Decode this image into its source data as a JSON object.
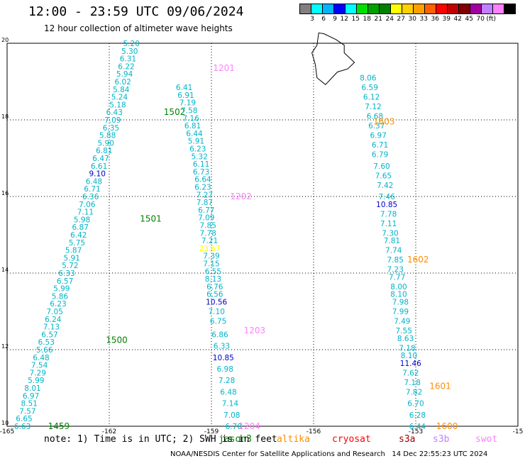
{
  "title": "12:00 - 23:59 UTC 09/06/2024",
  "subtitle": "12 hour collection of altimeter wave heights",
  "colorbar": {
    "colors": [
      "#808080",
      "#00ffff",
      "#00b4ff",
      "#0000ff",
      "#00ffff",
      "#00e000",
      "#00a000",
      "#008000",
      "#ffff00",
      "#ffd000",
      "#ffa000",
      "#ff6000",
      "#ff0000",
      "#c00000",
      "#800000",
      "#a000a0",
      "#c080ff",
      "#ff80ff",
      "#000000"
    ],
    "labels": [
      "3",
      "6",
      "9",
      "12",
      "15",
      "18",
      "21",
      "24",
      "27",
      "30",
      "33",
      "36",
      "39",
      "42",
      "45",
      "70",
      "(ft)"
    ]
  },
  "note": "note: 1) Time is in UTC; 2) SWH is in feet",
  "legend": [
    {
      "name": "jason3",
      "color": "#008000"
    },
    {
      "name": "altika",
      "color": "#ff8c00"
    },
    {
      "name": "cryosat",
      "color": "#ff0000"
    },
    {
      "name": "s3a",
      "color": "#a00000"
    },
    {
      "name": "s3b",
      "color": "#c080ff"
    },
    {
      "name": "swot",
      "color": "#ff80ff"
    }
  ],
  "credit": "NOAA/NESDIS Center for Satellite Applications and Research   14 Dec 22:55:23 UTC 2024",
  "chart_data": {
    "type": "scatter",
    "xlim": [
      -165,
      -150
    ],
    "ylim": [
      10,
      20
    ],
    "x_ticks": [
      "-165",
      "-162",
      "-159",
      "-156",
      "-153",
      "-15"
    ],
    "y_ticks": [
      "10",
      "12",
      "14",
      "16",
      "18",
      "20"
    ],
    "grid": true,
    "tracks": [
      {
        "color": "#00b4c8",
        "label_color": "#008000",
        "labels": [
          {
            "text": "1459",
            "lon": -163.8,
            "lat": 10.0
          },
          {
            "text": "1500",
            "lon": -162.1,
            "lat": 12.25
          },
          {
            "text": "1501",
            "lon": -161.1,
            "lat": 15.42
          },
          {
            "text": "1502",
            "lon": -160.4,
            "lat": 18.2
          }
        ],
        "points": [
          [
            "6.63",
            -164.55,
            10.0
          ],
          [
            "6.65",
            -164.5,
            10.2
          ],
          [
            "7.57",
            -164.4,
            10.4
          ],
          [
            "8.51",
            -164.35,
            10.6
          ],
          [
            "6.97",
            -164.3,
            10.8
          ],
          [
            "8.01",
            -164.25,
            11.0
          ],
          [
            "5.99",
            -164.15,
            11.2
          ],
          [
            "7.29",
            -164.1,
            11.4
          ],
          [
            "7.54",
            -164.05,
            11.6
          ],
          [
            "6.48",
            -164.0,
            11.8
          ],
          [
            "5.66",
            -163.9,
            12.0
          ],
          [
            "6.53",
            -163.85,
            12.2
          ],
          [
            "6.57",
            -163.75,
            12.4
          ],
          [
            "7.13",
            -163.7,
            12.6
          ],
          [
            "6.24",
            -163.65,
            12.8
          ],
          [
            "7.05",
            -163.6,
            13.0
          ],
          [
            "6.23",
            -163.5,
            13.2
          ],
          [
            "5.86",
            -163.45,
            13.4
          ],
          [
            "5.99",
            -163.4,
            13.6
          ],
          [
            "6.57",
            -163.3,
            13.8
          ],
          [
            "6.33",
            -163.25,
            14.0
          ],
          [
            "5.72",
            -163.15,
            14.2
          ],
          [
            "5.91",
            -163.1,
            14.4
          ],
          [
            "5.87",
            -163.05,
            14.6
          ],
          [
            "5.75",
            -162.95,
            14.8
          ],
          [
            "6.42",
            -162.9,
            15.0
          ],
          [
            "6.87",
            -162.85,
            15.2
          ],
          [
            "5.98",
            -162.8,
            15.4
          ],
          [
            "7.11",
            -162.7,
            15.6
          ],
          [
            "7.06",
            -162.65,
            15.8
          ],
          [
            "6.36",
            -162.55,
            16.0
          ],
          [
            "6.71",
            -162.5,
            16.2
          ],
          [
            "6.48",
            -162.45,
            16.4
          ],
          [
            "9.10",
            -162.35,
            16.6
          ],
          [
            "6.61",
            -162.3,
            16.8
          ],
          [
            "6.47",
            -162.25,
            17.0
          ],
          [
            "6.81",
            -162.15,
            17.2
          ],
          [
            "5.90",
            -162.1,
            17.4
          ],
          [
            "5.88",
            -162.05,
            17.6
          ],
          [
            "6.35",
            -161.95,
            17.8
          ],
          [
            "7.09",
            -161.9,
            18.0
          ],
          [
            "6.43",
            -161.85,
            18.2
          ],
          [
            "5.18",
            -161.75,
            18.4
          ],
          [
            "5.24",
            -161.7,
            18.6
          ],
          [
            "5.84",
            -161.65,
            18.8
          ],
          [
            "6.02",
            -161.6,
            19.0
          ],
          [
            "5.94",
            -161.55,
            19.2
          ],
          [
            "6.22",
            -161.5,
            19.4
          ],
          [
            "6.31",
            -161.45,
            19.6
          ],
          [
            "5.30",
            -161.4,
            19.8
          ],
          [
            "5.20",
            -161.35,
            20.0
          ]
        ]
      },
      {
        "color": "#00b4c8",
        "label_color": "#ff80ff",
        "labels": [
          {
            "text": "1204",
            "lon": -158.2,
            "lat": 10.0
          },
          {
            "text": "1203",
            "lon": -158.05,
            "lat": 12.5
          },
          {
            "text": "1202",
            "lon": -158.45,
            "lat": 16.0
          },
          {
            "text": "1201",
            "lon": -158.95,
            "lat": 19.35
          }
        ],
        "points": [
          [
            "6.70",
            -158.35,
            10.0
          ],
          [
            "7.08",
            -158.4,
            10.3
          ],
          [
            "7.14",
            -158.45,
            10.6
          ],
          [
            "6.48",
            -158.5,
            10.9
          ],
          [
            "7.28",
            -158.55,
            11.2
          ],
          [
            "6.98",
            -158.6,
            11.5
          ],
          [
            "10.85",
            -158.65,
            11.8
          ],
          [
            "6.33",
            -158.7,
            12.1
          ],
          [
            "6.86",
            -158.75,
            12.4
          ],
          [
            "6.75",
            -158.8,
            12.75
          ],
          [
            "7.10",
            -158.85,
            13.0
          ],
          [
            "10.56",
            -158.85,
            13.25
          ],
          [
            "6.56",
            -158.9,
            13.45
          ],
          [
            "6.76",
            -158.9,
            13.65
          ],
          [
            "8.13",
            -158.95,
            13.85
          ],
          [
            "6.55",
            -158.95,
            14.05
          ],
          [
            "7.15",
            -159.0,
            14.25
          ],
          [
            "7.39",
            -159.0,
            14.45
          ],
          [
            "23.67",
            -159.05,
            14.65
          ],
          [
            "7.21",
            -159.05,
            14.85
          ],
          [
            "7.78",
            -159.1,
            15.05
          ],
          [
            "7.85",
            -159.1,
            15.25
          ],
          [
            "7.09",
            -159.15,
            15.45
          ],
          [
            "6.77",
            -159.15,
            15.65
          ],
          [
            "7.87",
            -159.2,
            15.85
          ],
          [
            "7.27",
            -159.2,
            16.05
          ],
          [
            "6.23",
            -159.25,
            16.25
          ],
          [
            "6.64",
            -159.25,
            16.45
          ],
          [
            "6.73",
            -159.3,
            16.65
          ],
          [
            "6.11",
            -159.3,
            16.85
          ],
          [
            "5.32",
            -159.35,
            17.05
          ],
          [
            "6.23",
            -159.4,
            17.25
          ],
          [
            "5.91",
            -159.45,
            17.45
          ],
          [
            "6.44",
            -159.5,
            17.65
          ],
          [
            "6.81",
            -159.55,
            17.85
          ],
          [
            "7.16",
            -159.6,
            18.05
          ],
          [
            "7.58",
            -159.65,
            18.25
          ],
          [
            "7.19",
            -159.7,
            18.45
          ],
          [
            "6.91",
            -159.75,
            18.65
          ],
          [
            "6.41",
            -159.8,
            18.85
          ]
        ]
      },
      {
        "color": "#00b4c8",
        "label_color": "#ff8c00",
        "labels": [
          {
            "text": "1600",
            "lon": -152.4,
            "lat": 10.0
          },
          {
            "text": "1601",
            "lon": -152.6,
            "lat": 11.05
          },
          {
            "text": "1602",
            "lon": -153.25,
            "lat": 14.35
          },
          {
            "text": "1603",
            "lon": -154.25,
            "lat": 17.95
          }
        ],
        "points": [
          [
            "6.44",
            -152.95,
            10.0
          ],
          [
            "6.28",
            -152.95,
            10.3
          ],
          [
            "6.70",
            -153.0,
            10.6
          ],
          [
            "7.82",
            -153.05,
            10.9
          ],
          [
            "7.18",
            -153.1,
            11.15
          ],
          [
            "7.62",
            -153.15,
            11.4
          ],
          [
            "11.46",
            -153.15,
            11.65
          ],
          [
            "8.10",
            -153.2,
            11.85
          ],
          [
            "7.18",
            -153.25,
            12.05
          ],
          [
            "8.63",
            -153.3,
            12.3
          ],
          [
            "7.55",
            -153.35,
            12.5
          ],
          [
            "7.49",
            -153.4,
            12.75
          ],
          [
            "7.99",
            -153.45,
            13.0
          ],
          [
            "7.98",
            -153.45,
            13.25
          ],
          [
            "8.10",
            -153.5,
            13.45
          ],
          [
            "8.00",
            -153.5,
            13.65
          ],
          [
            "7.77",
            -153.55,
            13.9
          ],
          [
            "7.23",
            -153.6,
            14.1
          ],
          [
            "7.85",
            -153.6,
            14.35
          ],
          [
            "7.74",
            -153.65,
            14.6
          ],
          [
            "7.81",
            -153.7,
            14.85
          ],
          [
            "7.30",
            -153.75,
            15.05
          ],
          [
            "7.11",
            -153.8,
            15.3
          ],
          [
            "7.78",
            -153.8,
            15.55
          ],
          [
            "10.85",
            -153.85,
            15.8
          ],
          [
            "7.46",
            -153.85,
            16.0
          ],
          [
            "7.42",
            -153.9,
            16.3
          ],
          [
            "7.65",
            -153.95,
            16.55
          ],
          [
            "7.60",
            -154.0,
            16.8
          ],
          [
            "6.79",
            -154.05,
            17.1
          ],
          [
            "6.71",
            -154.05,
            17.35
          ],
          [
            "6.97",
            -154.1,
            17.6
          ],
          [
            "6.37",
            -154.15,
            17.85
          ],
          [
            "6.68",
            -154.2,
            18.1
          ],
          [
            "7.12",
            -154.25,
            18.35
          ],
          [
            "6.12",
            -154.3,
            18.6
          ],
          [
            "6.59",
            -154.35,
            18.85
          ],
          [
            "8.06",
            -154.4,
            19.1
          ]
        ]
      }
    ],
    "series": [
      {
        "name": "jason3",
        "color": "#008000"
      },
      {
        "name": "altika",
        "color": "#ff8c00"
      },
      {
        "name": "cryosat",
        "color": "#ff0000"
      },
      {
        "name": "s3a",
        "color": "#a00000"
      },
      {
        "name": "s3b",
        "color": "#c080ff"
      },
      {
        "name": "swot",
        "color": "#ff80ff"
      }
    ]
  }
}
